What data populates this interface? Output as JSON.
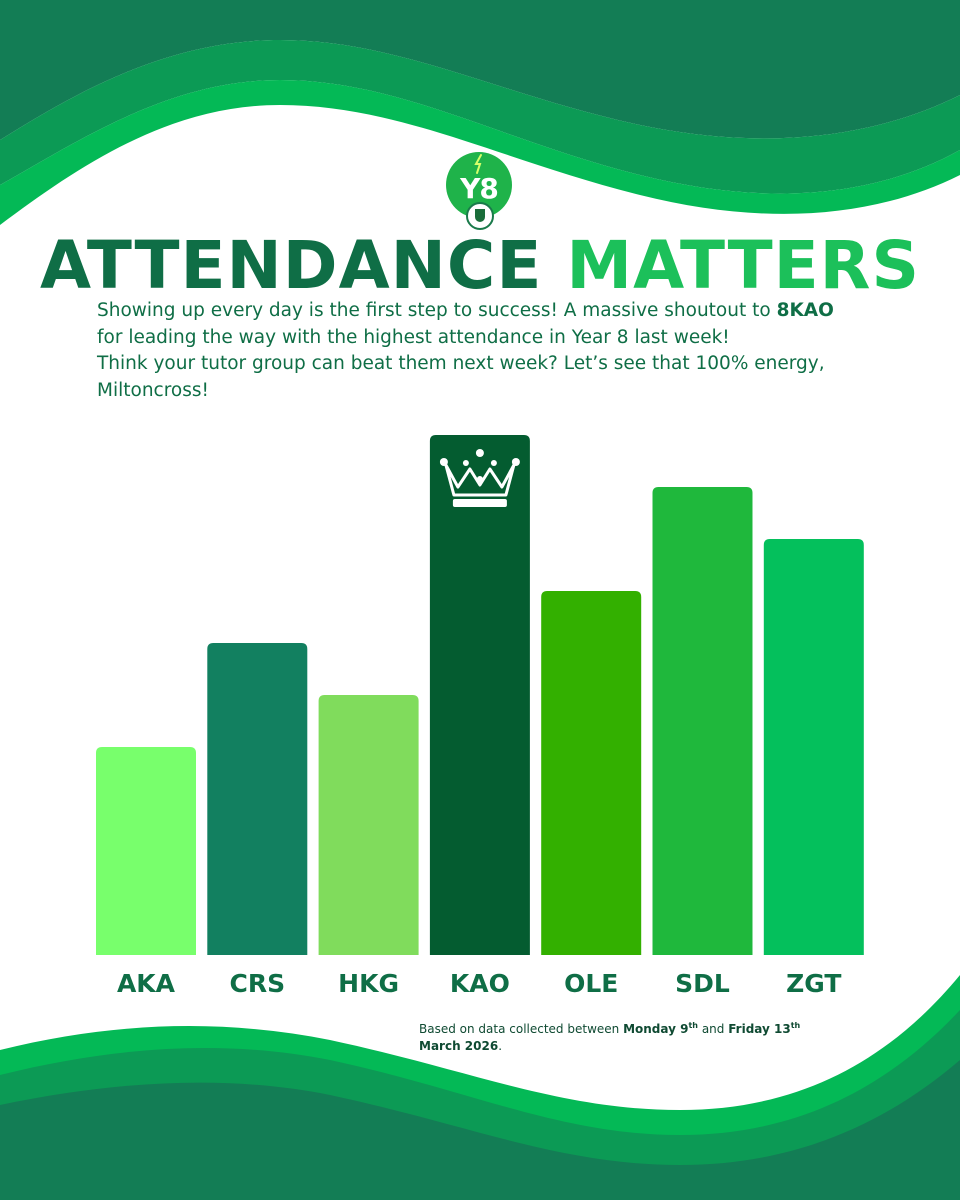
{
  "badge": {
    "text": "Y8"
  },
  "header": {
    "title_part1": "ATTENDANCE",
    "title_part2": "MATTERS"
  },
  "intro": {
    "line1": "Showing up every day is the first step to success! A massive shoutout to ",
    "highlight": "8KAO",
    "line2": "for leading the way with the highest attendance in Year 8 last week!",
    "line3": "Think your tutor group can beat them next week? Let’s see that 100% energy,",
    "line4": "Miltoncross!"
  },
  "colors": {
    "dark_green": "#0f6e46",
    "bright_green": "#1cc05a",
    "wave_dark": "#137d55",
    "wave_mid": "#0c9a55",
    "wave_light": "#04b956"
  },
  "chart_data": {
    "type": "bar",
    "categories": [
      "AKA",
      "CRS",
      "HKG",
      "KAO",
      "OLE",
      "SDL",
      "ZGT"
    ],
    "values": [
      40,
      60,
      50,
      100,
      70,
      90,
      80
    ],
    "bar_colors": [
      "#78ff6c",
      "#128060",
      "#80dc5c",
      "#045c30",
      "#33b000",
      "#1fb83c",
      "#04c05c"
    ],
    "winner": "KAO",
    "ylim": [
      0,
      100
    ],
    "grid": false
  },
  "footnote": {
    "prefix": "Based on data collected between ",
    "start": "Monday 9",
    "start_sup": "th",
    "mid": " and ",
    "end": "Friday 13",
    "end_sup": "th",
    "end_line2": "March 2026",
    "suffix": "."
  }
}
